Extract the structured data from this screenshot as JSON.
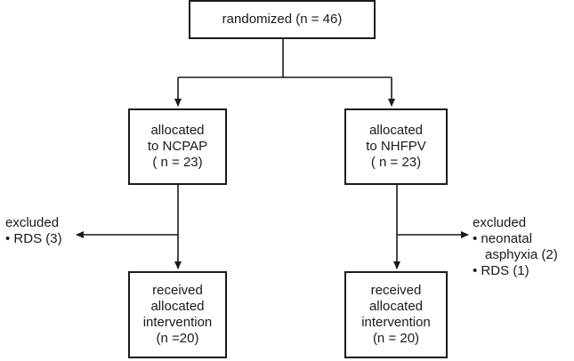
{
  "randomized": "randomized (n = 46)",
  "left": {
    "allocated": [
      "allocated",
      "to NCPAP",
      "( n = 23)"
    ],
    "excluded_title": "excluded",
    "excluded_items": [
      "• RDS (3)"
    ],
    "received": [
      "received",
      "allocated",
      "intervention",
      "(n =20)"
    ]
  },
  "right": {
    "allocated": [
      "allocated",
      "to NHFPV",
      "( n = 23)"
    ],
    "excluded_title": "excluded",
    "excluded_items": [
      "• neonatal",
      "asphyxia (2)",
      "• RDS (1)"
    ],
    "received": [
      "received",
      "allocated",
      "intervention",
      "(n = 20)"
    ]
  }
}
